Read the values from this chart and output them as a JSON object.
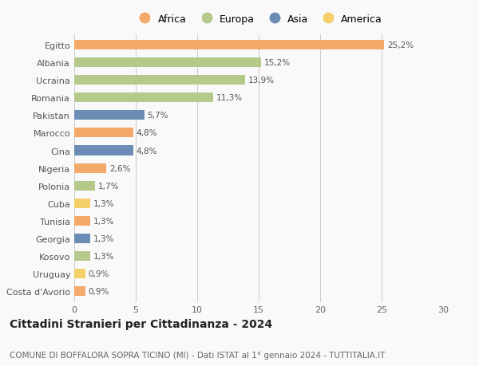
{
  "countries": [
    "Egitto",
    "Albania",
    "Ucraina",
    "Romania",
    "Pakistan",
    "Marocco",
    "Cina",
    "Nigeria",
    "Polonia",
    "Cuba",
    "Tunisia",
    "Georgia",
    "Kosovo",
    "Uruguay",
    "Costa d'Avorio"
  ],
  "values": [
    25.2,
    15.2,
    13.9,
    11.3,
    5.7,
    4.8,
    4.8,
    2.6,
    1.7,
    1.3,
    1.3,
    1.3,
    1.3,
    0.9,
    0.9
  ],
  "labels": [
    "25,2%",
    "15,2%",
    "13,9%",
    "11,3%",
    "5,7%",
    "4,8%",
    "4,8%",
    "2,6%",
    "1,7%",
    "1,3%",
    "1,3%",
    "1,3%",
    "1,3%",
    "0,9%",
    "0,9%"
  ],
  "continents": [
    "Africa",
    "Europa",
    "Europa",
    "Europa",
    "Asia",
    "Africa",
    "Asia",
    "Africa",
    "Europa",
    "America",
    "Africa",
    "Asia",
    "Europa",
    "America",
    "Africa"
  ],
  "colors": {
    "Africa": "#F4A96A",
    "Europa": "#B5C98A",
    "Asia": "#6B8DB5",
    "America": "#F5CF6A"
  },
  "legend_order": [
    "Africa",
    "Europa",
    "Asia",
    "America"
  ],
  "xlim": [
    0,
    30
  ],
  "xticks": [
    0,
    5,
    10,
    15,
    20,
    25,
    30
  ],
  "title": "Cittadini Stranieri per Cittadinanza - 2024",
  "subtitle": "COMUNE DI BOFFALORA SOPRA TICINO (MI) - Dati ISTAT al 1° gennaio 2024 - TUTTITALIA.IT",
  "bg_color": "#f9f9f9",
  "bar_height": 0.55,
  "label_fontsize": 7.5,
  "ytick_fontsize": 8,
  "xtick_fontsize": 8,
  "title_fontsize": 10,
  "subtitle_fontsize": 7.5,
  "legend_fontsize": 9
}
